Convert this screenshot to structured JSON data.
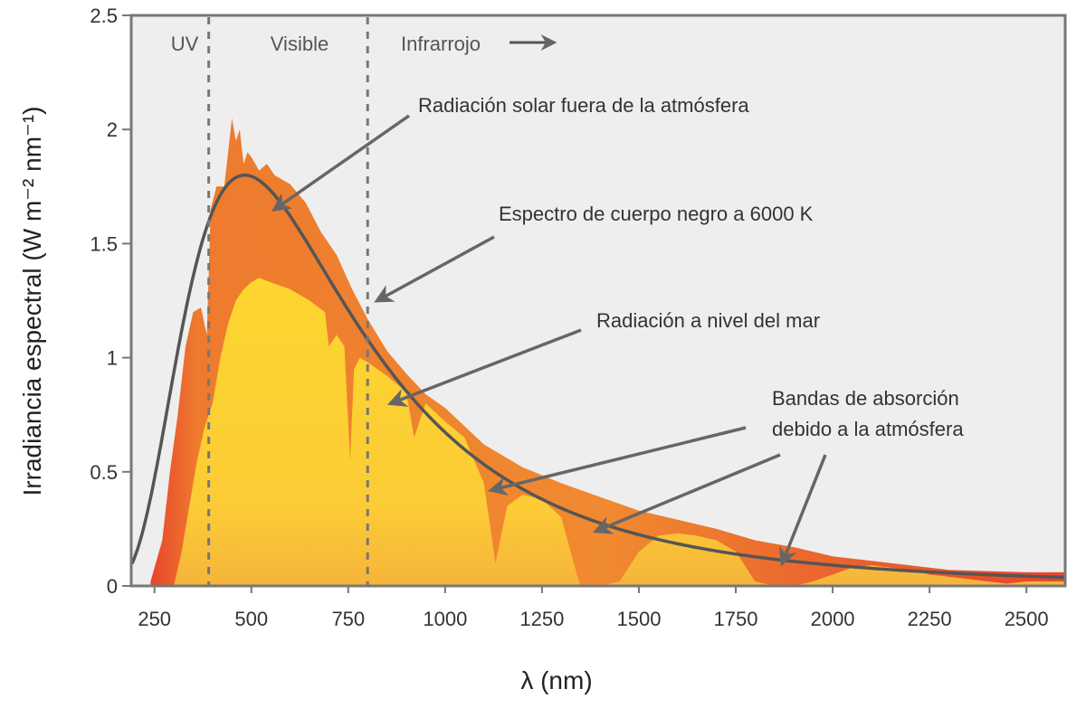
{
  "chart_data": {
    "type": "area",
    "xlabel": "λ (nm)",
    "ylabel": "Irradiancia espectral (W m⁻² nm⁻¹)",
    "xlim": [
      190,
      2600
    ],
    "ylim": [
      0,
      2.5
    ],
    "x_ticks": [
      250,
      500,
      750,
      1000,
      1250,
      1500,
      1750,
      2000,
      2250,
      2500
    ],
    "y_ticks": [
      0,
      0.5,
      1,
      1.5,
      2,
      2.5
    ],
    "y_tick_labels": [
      "0",
      "0.5",
      "1",
      "1.5",
      "2",
      "2.5"
    ],
    "grid": false,
    "regions": [
      {
        "label": "UV"
      },
      {
        "label": "Visible"
      },
      {
        "label": "Infrarrojo",
        "arrow": true
      }
    ],
    "region_boundaries": [
      390,
      800
    ],
    "series": [
      {
        "name": "Radiación solar fuera de la atmósfera",
        "color": "#EE8A2E",
        "x": [
          240,
          270,
          290,
          310,
          330,
          350,
          370,
          385,
          395,
          410,
          430,
          450,
          460,
          470,
          480,
          490,
          500,
          520,
          540,
          560,
          580,
          600,
          640,
          680,
          720,
          760,
          800,
          850,
          900,
          950,
          1000,
          1100,
          1200,
          1300,
          1400,
          1500,
          1600,
          1700,
          1800,
          1900,
          2000,
          2100,
          2200,
          2300,
          2400,
          2500,
          2600
        ],
        "y": [
          0.02,
          0.2,
          0.5,
          0.75,
          1.05,
          1.2,
          1.22,
          1.1,
          1.65,
          1.75,
          1.75,
          2.05,
          1.95,
          2.0,
          1.85,
          1.9,
          1.88,
          1.82,
          1.85,
          1.8,
          1.78,
          1.76,
          1.68,
          1.55,
          1.45,
          1.3,
          1.17,
          1.03,
          0.93,
          0.84,
          0.78,
          0.62,
          0.52,
          0.45,
          0.39,
          0.33,
          0.29,
          0.25,
          0.2,
          0.17,
          0.13,
          0.11,
          0.09,
          0.07,
          0.065,
          0.06,
          0.06
        ]
      },
      {
        "name": "Radiación a nivel del mar",
        "color": "#FCD42E",
        "x": [
          300,
          320,
          340,
          360,
          380,
          400,
          420,
          440,
          460,
          480,
          500,
          520,
          550,
          600,
          650,
          690,
          700,
          720,
          740,
          755,
          765,
          780,
          800,
          850,
          900,
          920,
          950,
          1000,
          1050,
          1100,
          1130,
          1160,
          1200,
          1250,
          1300,
          1340,
          1350,
          1400,
          1450,
          1500,
          1550,
          1600,
          1650,
          1700,
          1750,
          1800,
          1850,
          1900,
          1950,
          2000,
          2050,
          2100,
          2150,
          2200,
          2250,
          2300,
          2350,
          2400,
          2450,
          2500,
          2600
        ],
        "y": [
          0.0,
          0.15,
          0.35,
          0.55,
          0.7,
          0.8,
          1.0,
          1.15,
          1.25,
          1.3,
          1.33,
          1.35,
          1.33,
          1.3,
          1.25,
          1.2,
          1.05,
          1.1,
          1.05,
          0.55,
          0.95,
          1.0,
          0.98,
          0.92,
          0.85,
          0.65,
          0.8,
          0.72,
          0.65,
          0.45,
          0.1,
          0.35,
          0.4,
          0.38,
          0.3,
          0.05,
          0.0,
          0.0,
          0.02,
          0.15,
          0.22,
          0.23,
          0.22,
          0.2,
          0.15,
          0.02,
          0.0,
          0.0,
          0.02,
          0.05,
          0.08,
          0.09,
          0.08,
          0.07,
          0.05,
          0.04,
          0.03,
          0.02,
          0.01,
          0.02,
          0.02
        ]
      }
    ],
    "blackbody": {
      "name": "Espectro de cuerpo negro a 6000 K",
      "color": "#555555",
      "temperature_K": 6000,
      "peak": 1.8
    },
    "annotations": [
      {
        "text": "Radiación solar fuera de la atmósfera",
        "target": [
          560,
          1.65
        ]
      },
      {
        "text": "Espectro de cuerpo negro a 6000 K",
        "target": [
          825,
          1.25
        ]
      },
      {
        "text": "Radiación a nivel del mar",
        "target": [
          860,
          0.8
        ]
      },
      {
        "lines": [
          "Bandas de absorción",
          "debido a la atmósfera"
        ],
        "targets": [
          [
            1120,
            0.42
          ],
          [
            1390,
            0.24
          ],
          [
            1870,
            0.1
          ]
        ]
      }
    ]
  }
}
